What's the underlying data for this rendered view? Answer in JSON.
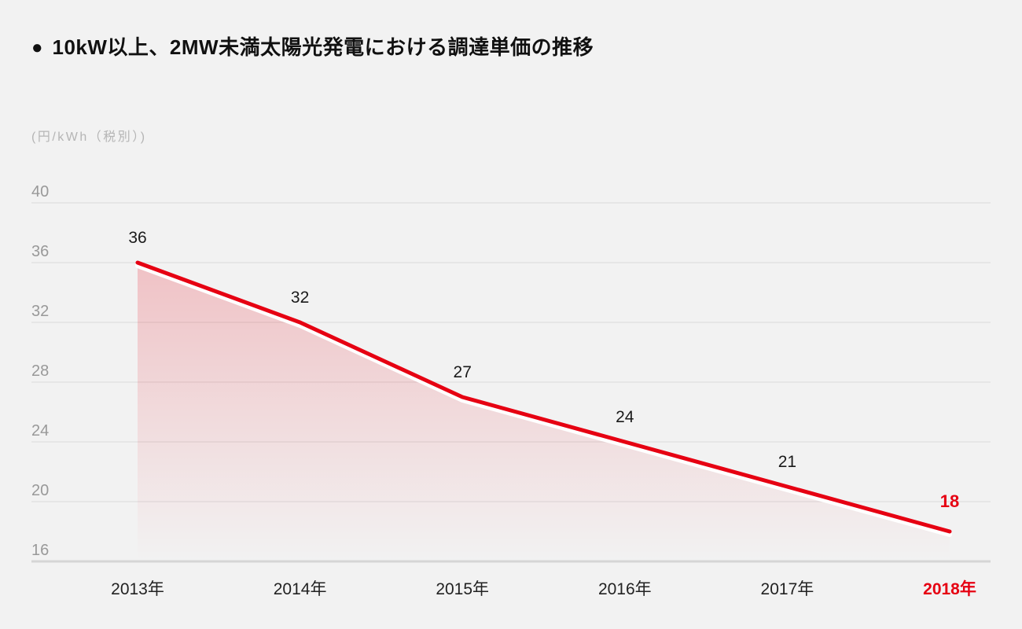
{
  "page": {
    "background": "#f2f2f2"
  },
  "header": {
    "bullet": "●",
    "title": "10kW以上、2MW未満太陽光発電における調達単価の推移"
  },
  "chart_data": {
    "type": "area",
    "title": "10kW以上、2MW未満太陽光発電における調達単価の推移",
    "unit_label": "(円/kWh（税別）)",
    "categories": [
      "2013年",
      "2014年",
      "2015年",
      "2016年",
      "2017年",
      "2018年"
    ],
    "values": [
      36,
      32,
      27,
      24,
      21,
      18
    ],
    "y_ticks": [
      40,
      36,
      32,
      28,
      24,
      20,
      16
    ],
    "ylim": [
      16,
      40
    ],
    "grid": true,
    "legend": "none",
    "highlight_last": true,
    "colors": {
      "line": "#e60012",
      "highlight_text": "#e60012",
      "fill_top": "rgba(230,0,18,0.20)",
      "fill_bottom": "rgba(230,0,18,0)",
      "grid": "#e2e2e2",
      "axis": "#d5d5d5",
      "tick_text": "#999999",
      "x_text": "#222222",
      "label_text": "#1a1a1a",
      "gap_stroke": "#ffffff"
    }
  }
}
